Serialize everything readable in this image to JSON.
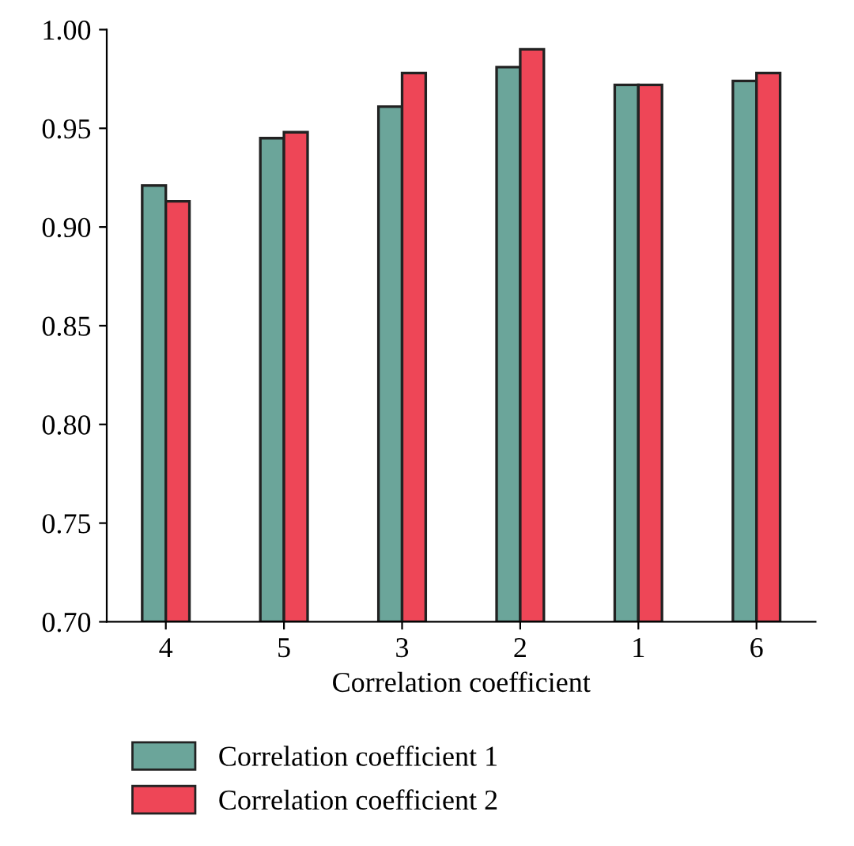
{
  "chart_data": {
    "type": "bar",
    "xlabel": "Correlation coefficient",
    "categories": [
      "4",
      "5",
      "3",
      "2",
      "1",
      "6"
    ],
    "series": [
      {
        "name": "Correlation coefficient 1",
        "color": "#6ba59a",
        "values": [
          0.921,
          0.945,
          0.961,
          0.981,
          0.972,
          0.974
        ]
      },
      {
        "name": "Correlation coefficient 2",
        "color": "#ee4657",
        "values": [
          0.913,
          0.948,
          0.978,
          0.99,
          0.972,
          0.978
        ]
      }
    ],
    "ylim": [
      0.7,
      1.0
    ],
    "yticks": [
      {
        "value": 0.7,
        "label": "0.70"
      },
      {
        "value": 0.75,
        "label": "0.75"
      },
      {
        "value": 0.8,
        "label": "0.80"
      },
      {
        "value": 0.85,
        "label": "0.85"
      },
      {
        "value": 0.9,
        "label": "0.90"
      },
      {
        "value": 0.95,
        "label": "0.95"
      },
      {
        "value": 1.0,
        "label": "1.00"
      }
    ],
    "grid": false,
    "legend": "bottom"
  }
}
